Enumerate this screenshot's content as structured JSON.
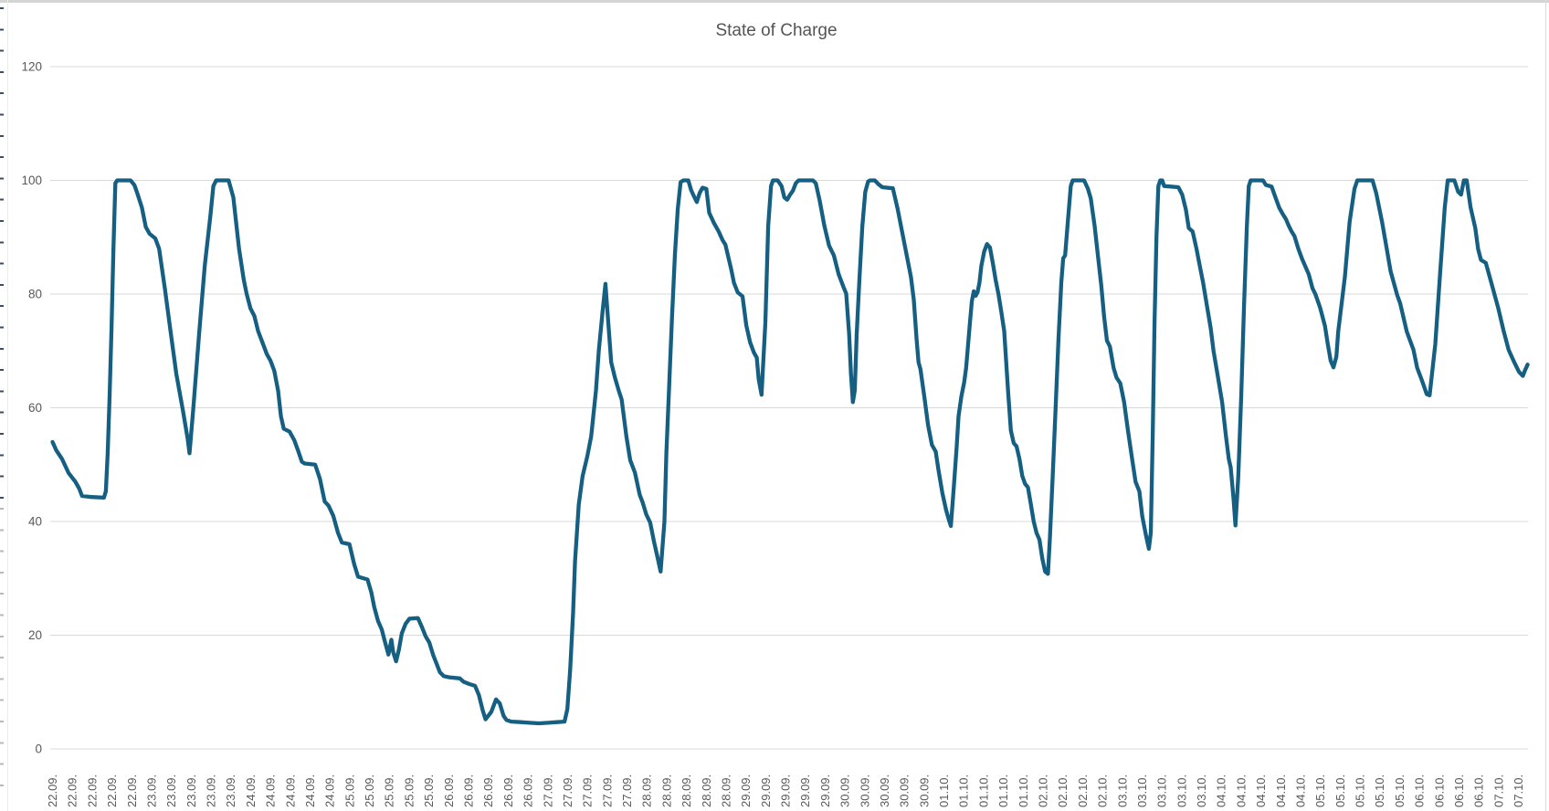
{
  "chart_data": {
    "type": "line",
    "title": "State of Charge",
    "series_name": "State of Charge",
    "series_color": "#156082",
    "grid_color": "#d9d9d9",
    "label_color": "#595959",
    "grid": true,
    "legend": "none",
    "ylim": [
      0,
      120
    ],
    "y_ticks": [
      0,
      20,
      40,
      60,
      80,
      100,
      120
    ],
    "x_unit": "days since 22.09. 00:00 (digitized from categorical date axis)",
    "x_range_days": [
      0,
      15.5
    ],
    "x_tick_labels": [
      "22.09.",
      "22.09.",
      "22.09.",
      "22.09.",
      "22.09.",
      "23.09.",
      "23.09.",
      "23.09.",
      "23.09.",
      "23.09.",
      "24.09.",
      "24.09.",
      "24.09.",
      "24.09.",
      "24.09.",
      "25.09.",
      "25.09.",
      "25.09.",
      "25.09.",
      "25.09.",
      "26.09.",
      "26.09.",
      "26.09.",
      "26.09.",
      "26.09.",
      "27.09.",
      "27.09.",
      "27.09.",
      "27.09.",
      "27.09.",
      "28.09.",
      "28.09.",
      "28.09.",
      "28.09.",
      "28.09.",
      "29.09.",
      "29.09.",
      "29.09.",
      "29.09.",
      "29.09.",
      "30.09.",
      "30.09.",
      "30.09.",
      "30.09.",
      "30.09.",
      "01.10.",
      "01.10.",
      "01.10.",
      "01.10.",
      "01.10.",
      "02.10.",
      "02.10.",
      "02.10.",
      "02.10.",
      "03.10.",
      "03.10.",
      "03.10.",
      "03.10.",
      "03.10.",
      "04.10.",
      "04.10.",
      "04.10.",
      "04.10.",
      "04.10.",
      "05.10.",
      "05.10.",
      "05.10.",
      "05.10.",
      "05.10.",
      "06.10.",
      "06.10.",
      "06.10.",
      "06.10.",
      "07.10.",
      "07.10."
    ],
    "points": [
      [
        0.0,
        54
      ],
      [
        0.04,
        52.5
      ],
      [
        0.1,
        51
      ],
      [
        0.17,
        48.5
      ],
      [
        0.24,
        47
      ],
      [
        0.28,
        45.8
      ],
      [
        0.31,
        44.5
      ],
      [
        0.41,
        44.3
      ],
      [
        0.54,
        44.2
      ],
      [
        0.56,
        45.3
      ],
      [
        0.58,
        52
      ],
      [
        0.6,
        62
      ],
      [
        0.62,
        74
      ],
      [
        0.64,
        88
      ],
      [
        0.66,
        99.5
      ],
      [
        0.68,
        100
      ],
      [
        0.82,
        100
      ],
      [
        0.86,
        99.2
      ],
      [
        0.89,
        97.8
      ],
      [
        0.94,
        95.2
      ],
      [
        0.98,
        91.8
      ],
      [
        1.02,
        90.6
      ],
      [
        1.08,
        89.8
      ],
      [
        1.12,
        88
      ],
      [
        1.18,
        81
      ],
      [
        1.24,
        73.5
      ],
      [
        1.3,
        66
      ],
      [
        1.37,
        59.5
      ],
      [
        1.42,
        54.5
      ],
      [
        1.44,
        52
      ],
      [
        1.48,
        60
      ],
      [
        1.54,
        73
      ],
      [
        1.6,
        85
      ],
      [
        1.66,
        94
      ],
      [
        1.69,
        99
      ],
      [
        1.72,
        100
      ],
      [
        1.85,
        100
      ],
      [
        1.9,
        97
      ],
      [
        1.96,
        88
      ],
      [
        2.01,
        82.5
      ],
      [
        2.04,
        80
      ],
      [
        2.08,
        77.5
      ],
      [
        2.12,
        76.2
      ],
      [
        2.16,
        73.5
      ],
      [
        2.21,
        71.3
      ],
      [
        2.25,
        69.5
      ],
      [
        2.29,
        68.3
      ],
      [
        2.33,
        66.5
      ],
      [
        2.37,
        63
      ],
      [
        2.4,
        58.5
      ],
      [
        2.43,
        56.3
      ],
      [
        2.49,
        55.8
      ],
      [
        2.54,
        54.3
      ],
      [
        2.58,
        52.5
      ],
      [
        2.62,
        50.5
      ],
      [
        2.65,
        50.2
      ],
      [
        2.76,
        50
      ],
      [
        2.81,
        47.5
      ],
      [
        2.86,
        43.5
      ],
      [
        2.9,
        42.8
      ],
      [
        2.95,
        41
      ],
      [
        3.0,
        38
      ],
      [
        3.04,
        36.3
      ],
      [
        3.12,
        36
      ],
      [
        3.17,
        32.5
      ],
      [
        3.21,
        30.3
      ],
      [
        3.31,
        29.8
      ],
      [
        3.35,
        27.5
      ],
      [
        3.38,
        25
      ],
      [
        3.42,
        22.5
      ],
      [
        3.46,
        21
      ],
      [
        3.49,
        19
      ],
      [
        3.53,
        16.6
      ],
      [
        3.56,
        19.2
      ],
      [
        3.58,
        17
      ],
      [
        3.61,
        15.4
      ],
      [
        3.64,
        17.5
      ],
      [
        3.67,
        20.3
      ],
      [
        3.71,
        22
      ],
      [
        3.75,
        22.9
      ],
      [
        3.84,
        23
      ],
      [
        3.88,
        21.5
      ],
      [
        3.92,
        19.8
      ],
      [
        3.96,
        18.7
      ],
      [
        4.0,
        16.5
      ],
      [
        4.04,
        14.8
      ],
      [
        4.07,
        13.5
      ],
      [
        4.11,
        12.8
      ],
      [
        4.17,
        12.6
      ],
      [
        4.28,
        12.4
      ],
      [
        4.32,
        11.8
      ],
      [
        4.38,
        11.4
      ],
      [
        4.44,
        11.1
      ],
      [
        4.48,
        9.5
      ],
      [
        4.52,
        6.8
      ],
      [
        4.55,
        5.2
      ],
      [
        4.61,
        6.5
      ],
      [
        4.66,
        8.7
      ],
      [
        4.7,
        8
      ],
      [
        4.74,
        5.8
      ],
      [
        4.77,
        5.1
      ],
      [
        4.82,
        4.8
      ],
      [
        4.92,
        4.7
      ],
      [
        5.01,
        4.6
      ],
      [
        5.11,
        4.5
      ],
      [
        5.21,
        4.6
      ],
      [
        5.3,
        4.7
      ],
      [
        5.38,
        4.8
      ],
      [
        5.41,
        7
      ],
      [
        5.44,
        14
      ],
      [
        5.47,
        24
      ],
      [
        5.49,
        33
      ],
      [
        5.53,
        43
      ],
      [
        5.57,
        48
      ],
      [
        5.62,
        51.5
      ],
      [
        5.66,
        55
      ],
      [
        5.71,
        63
      ],
      [
        5.74,
        70
      ],
      [
        5.78,
        77
      ],
      [
        5.81,
        81.8
      ],
      [
        5.84,
        75
      ],
      [
        5.87,
        68
      ],
      [
        5.91,
        65.3
      ],
      [
        5.95,
        63
      ],
      [
        5.98,
        61.5
      ],
      [
        6.03,
        55
      ],
      [
        6.07,
        50.8
      ],
      [
        6.12,
        48.6
      ],
      [
        6.17,
        44.7
      ],
      [
        6.2,
        43.4
      ],
      [
        6.24,
        41.2
      ],
      [
        6.28,
        39.8
      ],
      [
        6.32,
        36.5
      ],
      [
        6.36,
        33.5
      ],
      [
        6.39,
        31.2
      ],
      [
        6.43,
        40
      ],
      [
        6.45,
        52
      ],
      [
        6.48,
        64
      ],
      [
        6.51,
        76
      ],
      [
        6.54,
        87
      ],
      [
        6.57,
        95
      ],
      [
        6.6,
        99.7
      ],
      [
        6.63,
        100
      ],
      [
        6.68,
        100
      ],
      [
        6.71,
        98.3
      ],
      [
        6.74,
        97.2
      ],
      [
        6.77,
        96.2
      ],
      [
        6.8,
        97.8
      ],
      [
        6.83,
        98.7
      ],
      [
        6.87,
        98.5
      ],
      [
        6.9,
        94.3
      ],
      [
        6.95,
        92.5
      ],
      [
        7.0,
        91
      ],
      [
        7.04,
        89.5
      ],
      [
        7.07,
        88.7
      ],
      [
        7.13,
        84.5
      ],
      [
        7.16,
        82
      ],
      [
        7.2,
        80.3
      ],
      [
        7.25,
        79.6
      ],
      [
        7.29,
        74.5
      ],
      [
        7.33,
        71.5
      ],
      [
        7.37,
        69.7
      ],
      [
        7.4,
        68.8
      ],
      [
        7.42,
        65
      ],
      [
        7.45,
        62.3
      ],
      [
        7.49,
        75
      ],
      [
        7.52,
        92
      ],
      [
        7.55,
        99
      ],
      [
        7.57,
        100
      ],
      [
        7.62,
        100
      ],
      [
        7.66,
        99
      ],
      [
        7.69,
        97
      ],
      [
        7.72,
        96.6
      ],
      [
        7.75,
        97.5
      ],
      [
        7.78,
        98.2
      ],
      [
        7.81,
        99.5
      ],
      [
        7.84,
        100
      ],
      [
        7.99,
        100
      ],
      [
        8.02,
        99.5
      ],
      [
        8.06,
        96.5
      ],
      [
        8.11,
        92
      ],
      [
        8.16,
        88.5
      ],
      [
        8.21,
        86.8
      ],
      [
        8.26,
        83.5
      ],
      [
        8.31,
        81.3
      ],
      [
        8.34,
        80.1
      ],
      [
        8.37,
        73
      ],
      [
        8.39,
        66
      ],
      [
        8.41,
        61
      ],
      [
        8.43,
        63
      ],
      [
        8.45,
        73
      ],
      [
        8.48,
        83
      ],
      [
        8.51,
        92
      ],
      [
        8.54,
        98
      ],
      [
        8.57,
        99.8
      ],
      [
        8.59,
        100
      ],
      [
        8.64,
        100
      ],
      [
        8.68,
        99.3
      ],
      [
        8.72,
        98.8
      ],
      [
        8.83,
        98.6
      ],
      [
        8.88,
        95
      ],
      [
        8.95,
        89
      ],
      [
        9.02,
        83
      ],
      [
        9.05,
        79
      ],
      [
        9.08,
        72
      ],
      [
        9.1,
        68
      ],
      [
        9.12,
        66.8
      ],
      [
        9.16,
        62
      ],
      [
        9.2,
        57
      ],
      [
        9.24,
        53.5
      ],
      [
        9.28,
        52.3
      ],
      [
        9.31,
        49
      ],
      [
        9.35,
        45
      ],
      [
        9.39,
        42
      ],
      [
        9.42,
        40.2
      ],
      [
        9.44,
        39.2
      ],
      [
        9.47,
        46
      ],
      [
        9.5,
        53
      ],
      [
        9.52,
        58.5
      ],
      [
        9.55,
        62
      ],
      [
        9.58,
        64.5
      ],
      [
        9.6,
        67
      ],
      [
        9.62,
        71
      ],
      [
        9.64,
        75
      ],
      [
        9.66,
        78.8
      ],
      [
        9.68,
        80.5
      ],
      [
        9.7,
        79.7
      ],
      [
        9.72,
        80.3
      ],
      [
        9.74,
        82
      ],
      [
        9.76,
        85
      ],
      [
        9.79,
        87.5
      ],
      [
        9.82,
        88.8
      ],
      [
        9.85,
        88.2
      ],
      [
        9.88,
        85.5
      ],
      [
        9.91,
        82.5
      ],
      [
        9.94,
        80
      ],
      [
        9.97,
        76.8
      ],
      [
        10.0,
        73.5
      ],
      [
        10.04,
        63
      ],
      [
        10.07,
        56
      ],
      [
        10.1,
        53.8
      ],
      [
        10.13,
        53.2
      ],
      [
        10.16,
        51
      ],
      [
        10.19,
        48
      ],
      [
        10.22,
        46.6
      ],
      [
        10.25,
        46
      ],
      [
        10.28,
        43
      ],
      [
        10.31,
        40
      ],
      [
        10.34,
        38
      ],
      [
        10.37,
        36.8
      ],
      [
        10.4,
        33.5
      ],
      [
        10.43,
        31.2
      ],
      [
        10.46,
        30.8
      ],
      [
        10.48,
        37
      ],
      [
        10.51,
        48
      ],
      [
        10.54,
        60
      ],
      [
        10.57,
        72
      ],
      [
        10.6,
        82
      ],
      [
        10.62,
        86.3
      ],
      [
        10.64,
        86.8
      ],
      [
        10.67,
        93
      ],
      [
        10.7,
        99
      ],
      [
        10.72,
        100
      ],
      [
        10.84,
        100
      ],
      [
        10.88,
        98.5
      ],
      [
        10.91,
        96.8
      ],
      [
        10.95,
        92
      ],
      [
        10.98,
        87.5
      ],
      [
        11.02,
        81.5
      ],
      [
        11.05,
        76
      ],
      [
        11.08,
        71.8
      ],
      [
        11.11,
        70.8
      ],
      [
        11.15,
        67
      ],
      [
        11.18,
        65.3
      ],
      [
        11.22,
        64.3
      ],
      [
        11.26,
        61
      ],
      [
        11.3,
        56
      ],
      [
        11.34,
        51.5
      ],
      [
        11.38,
        47
      ],
      [
        11.42,
        45.3
      ],
      [
        11.45,
        41
      ],
      [
        11.49,
        37.5
      ],
      [
        11.52,
        35.2
      ],
      [
        11.54,
        38
      ],
      [
        11.56,
        55
      ],
      [
        11.58,
        75
      ],
      [
        11.6,
        90
      ],
      [
        11.62,
        99
      ],
      [
        11.64,
        100
      ],
      [
        11.66,
        100
      ],
      [
        11.68,
        99
      ],
      [
        11.83,
        98.8
      ],
      [
        11.87,
        97.5
      ],
      [
        11.91,
        94.8
      ],
      [
        11.94,
        91.6
      ],
      [
        11.98,
        91
      ],
      [
        12.02,
        88
      ],
      [
        12.06,
        84.5
      ],
      [
        12.09,
        82
      ],
      [
        12.13,
        78
      ],
      [
        12.17,
        74
      ],
      [
        12.2,
        70
      ],
      [
        12.24,
        66
      ],
      [
        12.29,
        61
      ],
      [
        12.33,
        55
      ],
      [
        12.36,
        51
      ],
      [
        12.38,
        49.5
      ],
      [
        12.41,
        44
      ],
      [
        12.43,
        39.3
      ],
      [
        12.46,
        48
      ],
      [
        12.49,
        62
      ],
      [
        12.52,
        78
      ],
      [
        12.55,
        92
      ],
      [
        12.57,
        99
      ],
      [
        12.59,
        100
      ],
      [
        12.72,
        100
      ],
      [
        12.75,
        99.2
      ],
      [
        12.81,
        98.9
      ],
      [
        12.84,
        97.5
      ],
      [
        12.89,
        95.2
      ],
      [
        12.93,
        94
      ],
      [
        12.96,
        93.2
      ],
      [
        12.99,
        92
      ],
      [
        13.02,
        91
      ],
      [
        13.05,
        90.2
      ],
      [
        13.09,
        88
      ],
      [
        13.13,
        86.2
      ],
      [
        13.2,
        83.5
      ],
      [
        13.24,
        81
      ],
      [
        13.27,
        80
      ],
      [
        13.32,
        77.6
      ],
      [
        13.37,
        74.4
      ],
      [
        13.4,
        71.2
      ],
      [
        13.43,
        68.3
      ],
      [
        13.46,
        67.1
      ],
      [
        13.49,
        69
      ],
      [
        13.51,
        73.4
      ],
      [
        13.58,
        83
      ],
      [
        13.63,
        92.7
      ],
      [
        13.68,
        98.5
      ],
      [
        13.71,
        100
      ],
      [
        13.87,
        100
      ],
      [
        13.91,
        97.7
      ],
      [
        13.97,
        92.7
      ],
      [
        14.02,
        87.9
      ],
      [
        14.06,
        84
      ],
      [
        14.13,
        79.8
      ],
      [
        14.16,
        78.4
      ],
      [
        14.23,
        73.4
      ],
      [
        14.3,
        70.2
      ],
      [
        14.34,
        67
      ],
      [
        14.39,
        64.8
      ],
      [
        14.44,
        62.4
      ],
      [
        14.47,
        62.2
      ],
      [
        14.53,
        71.2
      ],
      [
        14.58,
        83.5
      ],
      [
        14.63,
        95.3
      ],
      [
        14.66,
        100
      ],
      [
        14.73,
        100
      ],
      [
        14.77,
        98
      ],
      [
        14.8,
        97.5
      ],
      [
        14.83,
        100
      ],
      [
        14.86,
        100
      ],
      [
        14.9,
        95.3
      ],
      [
        14.95,
        91.6
      ],
      [
        14.98,
        87.9
      ],
      [
        15.01,
        86
      ],
      [
        15.06,
        85.5
      ],
      [
        15.12,
        81.9
      ],
      [
        15.19,
        77.6
      ],
      [
        15.25,
        73.4
      ],
      [
        15.3,
        70.2
      ],
      [
        15.36,
        68
      ],
      [
        15.41,
        66.3
      ],
      [
        15.45,
        65.6
      ],
      [
        15.47,
        66.5
      ],
      [
        15.5,
        67.6
      ]
    ]
  }
}
